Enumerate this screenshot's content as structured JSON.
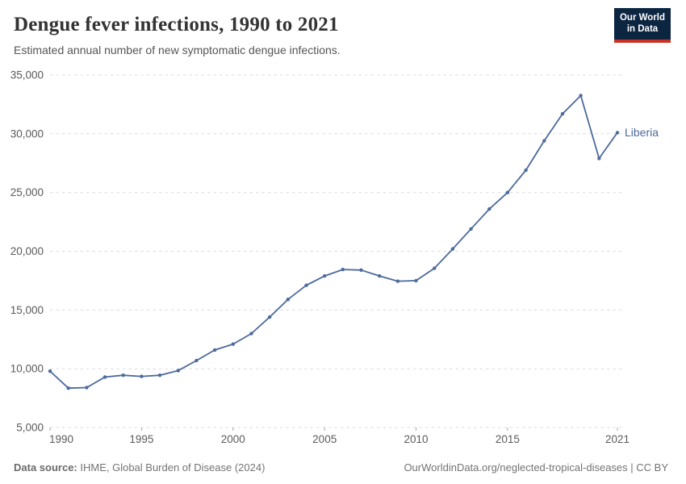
{
  "header": {
    "title": "Dengue fever infections, 1990 to 2021",
    "subtitle": "Estimated annual number of new symptomatic dengue infections."
  },
  "logo": {
    "line1": "Our World",
    "line2": "in Data"
  },
  "chart_data": {
    "type": "line",
    "title": "Dengue fever infections, 1990 to 2021",
    "subtitle": "Estimated annual number of new symptomatic dengue infections.",
    "entity": "Liberia",
    "x": [
      1990,
      1991,
      1992,
      1993,
      1994,
      1995,
      1996,
      1997,
      1998,
      1999,
      2000,
      2001,
      2002,
      2003,
      2004,
      2005,
      2006,
      2007,
      2008,
      2009,
      2010,
      2011,
      2012,
      2013,
      2014,
      2015,
      2016,
      2017,
      2018,
      2019,
      2020,
      2021
    ],
    "values": [
      9800,
      8350,
      8400,
      9300,
      9450,
      9350,
      9450,
      9850,
      10700,
      11600,
      12100,
      13000,
      14400,
      15900,
      17100,
      17900,
      18450,
      18400,
      17900,
      17450,
      17500,
      18550,
      20200,
      21900,
      23600,
      25000,
      26900,
      29400,
      31700,
      33250,
      27900,
      30100
    ],
    "xlim": [
      1990,
      2021
    ],
    "ylim": [
      5000,
      35000
    ],
    "yticks": [
      5000,
      10000,
      15000,
      20000,
      25000,
      30000,
      35000
    ],
    "xticks": [
      1990,
      1995,
      2000,
      2005,
      2010,
      2015,
      2021
    ],
    "grid": "horizontal-dashed",
    "legend_position": "end-of-line",
    "line_color": "#4c6a9c",
    "grid_color": "#dcdcdc",
    "tick_color": "#a9a9a9",
    "axis_label_color": "#5b5b5b"
  },
  "footer": {
    "datasource_label": "Data source:",
    "datasource_text": " IHME, Global Burden of Disease (2024)",
    "license_text": "OurWorldinData.org/neglected-tropical-diseases | CC BY"
  }
}
